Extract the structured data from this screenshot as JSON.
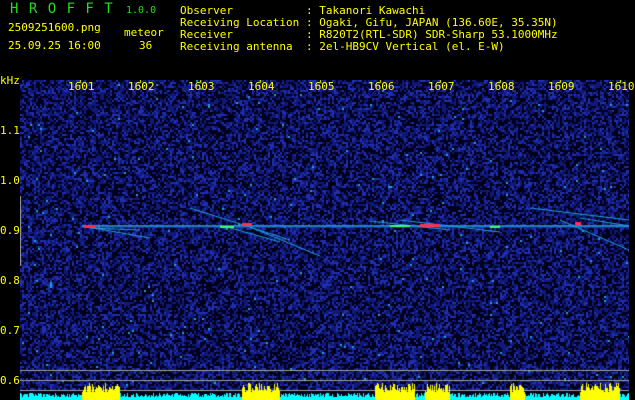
{
  "header": {
    "app_name": "H R O F F T",
    "version": "1.0.0",
    "filename": "2509251600.png",
    "datetime": "25.09.25 16:00",
    "meteor_label": "meteor",
    "meteor_count": "36",
    "info": [
      {
        "label": "Observer",
        "value": ": Takanori Kawachi"
      },
      {
        "label": "Receiving Location",
        "value": ": Ogaki, Gifu, JAPAN (136.60E, 35.35N)"
      },
      {
        "label": "Receiver",
        "value": ": R820T2(RTL-SDR) SDR-Sharp 53.1000MHz"
      },
      {
        "label": "Receiving antenna",
        "value": ": 2el-HB9CV Vertical (el. E-W)"
      }
    ]
  },
  "spectrogram": {
    "y_unit": "kHz",
    "x_ticks": [
      "1601",
      "1602",
      "1603",
      "1604",
      "1605",
      "1606",
      "1607",
      "1608",
      "1609",
      "1610"
    ],
    "y_ticks": [
      "1.1",
      "1.0",
      "0.9",
      "0.8",
      "0.7",
      "0.6"
    ],
    "colors": {
      "background": "#000022",
      "noise": "#1a2aa0",
      "bars": "#00ffff",
      "burst": "#ffff00",
      "axis_text": "#ffff00"
    }
  }
}
